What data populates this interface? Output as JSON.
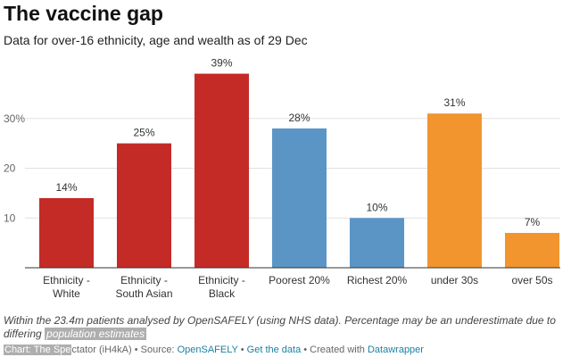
{
  "header": {
    "title": "The vaccine gap",
    "subtitle": "Data for over-16 ethnicity, age and wealth as of 29 Dec"
  },
  "chart_data": {
    "type": "bar",
    "categories": [
      [
        "Ethnicity -",
        "White"
      ],
      [
        "Ethnicity -",
        "South Asian"
      ],
      [
        "Ethnicity -",
        "Black"
      ],
      [
        "Poorest 20%"
      ],
      [
        "Richest 20%"
      ],
      [
        "under 30s"
      ],
      [
        "over 50s"
      ]
    ],
    "values": [
      14,
      25,
      39,
      28,
      10,
      31,
      7
    ],
    "value_labels": [
      "14%",
      "25%",
      "39%",
      "28%",
      "10%",
      "31%",
      "7%"
    ],
    "bar_colors": [
      "#c42b27",
      "#c42b27",
      "#c42b27",
      "#5b95c6",
      "#5b95c6",
      "#f2952f",
      "#f2952f"
    ],
    "yticks": [
      {
        "value": 10,
        "label": "10"
      },
      {
        "value": 20,
        "label": "20"
      },
      {
        "value": 30,
        "label": "30%"
      }
    ],
    "ylim": [
      0,
      40
    ],
    "grid": true
  },
  "notes": {
    "text": "Within the 23.4m patients analysed by OpenSAFELY (using NHS data). Percentage may be an underestimate due to differing ",
    "highlight": "population estimates"
  },
  "footer": {
    "chart_label": "Chart: The Spe",
    "chart_label_rest": "ctator (iH4kA)",
    "sep1": " • Source: ",
    "source_link": "OpenSAFELY",
    "sep2": " • ",
    "data_link": "Get the data",
    "sep3": " • Created with ",
    "tool_link": "Datawrapper"
  },
  "colors": {
    "grid": "#e1e1e1",
    "baseline": "#333333",
    "tick_text": "#666666"
  }
}
